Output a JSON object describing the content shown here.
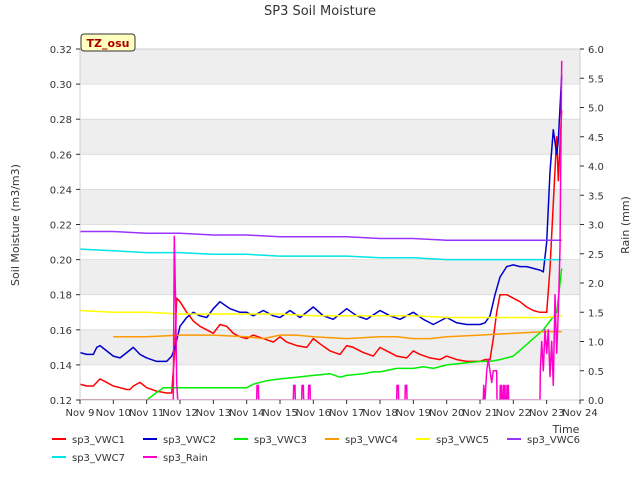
{
  "chart_data": {
    "type": "line",
    "title": "SP3 Soil Moisture",
    "xlabel": "Time",
    "ylabel": "Soil Moisture (m3/m3)",
    "y2label": "Rain (mm)",
    "annotation": "TZ_osu",
    "x_ticks": [
      "Nov 9",
      "Nov 10",
      "Nov 11",
      "Nov 12",
      "Nov 13",
      "Nov 14",
      "Nov 15",
      "Nov 16",
      "Nov 17",
      "Nov 18",
      "Nov 19",
      "Nov 20",
      "Nov 21",
      "Nov 22",
      "Nov 23",
      "Nov 24"
    ],
    "xlim": [
      9,
      24
    ],
    "ylim": [
      0.12,
      0.32
    ],
    "y_ticks": [
      "0.12",
      "0.14",
      "0.16",
      "0.18",
      "0.20",
      "0.22",
      "0.24",
      "0.26",
      "0.28",
      "0.30",
      "0.32"
    ],
    "y2lim": [
      0,
      6
    ],
    "y2_ticks": [
      "0.0",
      "0.5",
      "1.0",
      "1.5",
      "2.0",
      "2.5",
      "3.0",
      "3.5",
      "4.0",
      "4.5",
      "5.0",
      "5.5",
      "6.0"
    ],
    "grid": true,
    "legend_position": "bottom",
    "series": [
      {
        "name": "sp3_VWC1",
        "color": "#ff0000",
        "axis": "left",
        "x": [
          9.0,
          9.2,
          9.4,
          9.5,
          9.6,
          9.8,
          10.0,
          10.2,
          10.4,
          10.5,
          10.6,
          10.8,
          11.0,
          11.3,
          11.6,
          11.75,
          11.85,
          11.9,
          12.0,
          12.2,
          12.4,
          12.6,
          12.8,
          13.0,
          13.2,
          13.4,
          13.6,
          13.8,
          14.0,
          14.2,
          14.5,
          14.8,
          15.0,
          15.2,
          15.5,
          15.8,
          16.0,
          16.2,
          16.5,
          16.8,
          17.0,
          17.2,
          17.5,
          17.8,
          18.0,
          18.2,
          18.5,
          18.8,
          19.0,
          19.2,
          19.5,
          19.8,
          20.0,
          20.3,
          20.6,
          21.0,
          21.15,
          21.3,
          21.4,
          21.5,
          21.6,
          21.8,
          22.0,
          22.2,
          22.4,
          22.6,
          22.8,
          23.0,
          23.1,
          23.2,
          23.3,
          23.35,
          23.45
        ],
        "y": [
          0.129,
          0.128,
          0.128,
          0.13,
          0.132,
          0.13,
          0.128,
          0.127,
          0.126,
          0.126,
          0.128,
          0.13,
          0.127,
          0.125,
          0.124,
          0.124,
          0.15,
          0.178,
          0.176,
          0.17,
          0.165,
          0.162,
          0.16,
          0.158,
          0.163,
          0.162,
          0.158,
          0.156,
          0.155,
          0.157,
          0.155,
          0.153,
          0.156,
          0.153,
          0.151,
          0.15,
          0.155,
          0.152,
          0.148,
          0.146,
          0.151,
          0.15,
          0.147,
          0.145,
          0.15,
          0.148,
          0.145,
          0.144,
          0.148,
          0.146,
          0.144,
          0.143,
          0.145,
          0.143,
          0.142,
          0.142,
          0.143,
          0.143,
          0.155,
          0.17,
          0.18,
          0.18,
          0.178,
          0.176,
          0.173,
          0.171,
          0.17,
          0.17,
          0.195,
          0.232,
          0.27,
          0.245,
          0.285
        ]
      },
      {
        "name": "sp3_VWC2",
        "color": "#0000cc",
        "axis": "left",
        "x": [
          9.0,
          9.2,
          9.4,
          9.5,
          9.6,
          9.8,
          10.0,
          10.2,
          10.4,
          10.6,
          10.8,
          11.0,
          11.3,
          11.6,
          11.75,
          11.85,
          12.0,
          12.2,
          12.4,
          12.6,
          12.8,
          13.0,
          13.2,
          13.5,
          13.8,
          14.0,
          14.2,
          14.5,
          14.8,
          15.0,
          15.3,
          15.6,
          16.0,
          16.3,
          16.6,
          17.0,
          17.3,
          17.6,
          18.0,
          18.3,
          18.6,
          19.0,
          19.3,
          19.6,
          20.0,
          20.3,
          20.6,
          21.0,
          21.15,
          21.3,
          21.45,
          21.6,
          21.8,
          22.0,
          22.2,
          22.4,
          22.6,
          22.8,
          22.9,
          23.0,
          23.1,
          23.2,
          23.3,
          23.35,
          23.45
        ],
        "y": [
          0.147,
          0.146,
          0.146,
          0.15,
          0.151,
          0.148,
          0.145,
          0.144,
          0.147,
          0.15,
          0.146,
          0.144,
          0.142,
          0.142,
          0.145,
          0.15,
          0.162,
          0.167,
          0.17,
          0.168,
          0.167,
          0.172,
          0.176,
          0.172,
          0.17,
          0.17,
          0.168,
          0.171,
          0.168,
          0.167,
          0.171,
          0.167,
          0.173,
          0.168,
          0.166,
          0.172,
          0.168,
          0.166,
          0.171,
          0.168,
          0.166,
          0.17,
          0.166,
          0.163,
          0.167,
          0.164,
          0.163,
          0.163,
          0.164,
          0.168,
          0.18,
          0.19,
          0.196,
          0.197,
          0.196,
          0.196,
          0.195,
          0.194,
          0.193,
          0.21,
          0.25,
          0.274,
          0.26,
          0.268,
          0.305
        ]
      },
      {
        "name": "sp3_VWC3",
        "color": "#00ee00",
        "axis": "left",
        "x": [
          9.0,
          10.0,
          11.0,
          11.5,
          12.0,
          13.0,
          14.0,
          14.2,
          14.6,
          15.0,
          15.5,
          16.0,
          16.5,
          16.8,
          17.0,
          17.5,
          17.8,
          18.0,
          18.5,
          19.0,
          19.3,
          19.6,
          20.0,
          20.5,
          21.0,
          21.3,
          21.6,
          22.0,
          22.3,
          22.6,
          22.9,
          23.1,
          23.3,
          23.45
        ],
        "y": [
          0.12,
          0.12,
          0.12,
          0.127,
          0.127,
          0.127,
          0.127,
          0.129,
          0.131,
          0.132,
          0.133,
          0.134,
          0.135,
          0.133,
          0.134,
          0.135,
          0.136,
          0.136,
          0.138,
          0.138,
          0.139,
          0.138,
          0.14,
          0.141,
          0.142,
          0.142,
          0.143,
          0.145,
          0.15,
          0.155,
          0.16,
          0.165,
          0.17,
          0.195
        ]
      },
      {
        "name": "sp3_VWC4",
        "color": "#ff9900",
        "axis": "left",
        "x": [
          10.0,
          11.0,
          12.0,
          13.0,
          14.0,
          14.5,
          15.0,
          15.5,
          16.0,
          17.0,
          18.0,
          18.5,
          19.0,
          19.5,
          20.0,
          21.0,
          22.0,
          23.0,
          23.45
        ],
        "y": [
          0.156,
          0.156,
          0.157,
          0.157,
          0.156,
          0.155,
          0.157,
          0.157,
          0.156,
          0.155,
          0.156,
          0.156,
          0.155,
          0.155,
          0.156,
          0.157,
          0.158,
          0.159,
          0.159
        ]
      },
      {
        "name": "sp3_VWC5",
        "color": "#ffff00",
        "axis": "left",
        "x": [
          9.0,
          10.0,
          11.0,
          12.0,
          13.0,
          14.0,
          15.0,
          16.0,
          17.0,
          18.0,
          19.0,
          20.0,
          21.0,
          22.0,
          23.0,
          23.45
        ],
        "y": [
          0.171,
          0.17,
          0.17,
          0.169,
          0.169,
          0.169,
          0.169,
          0.168,
          0.168,
          0.168,
          0.168,
          0.167,
          0.167,
          0.167,
          0.167,
          0.168
        ]
      },
      {
        "name": "sp3_VWC6",
        "color": "#9933ff",
        "axis": "left",
        "x": [
          9.0,
          10.0,
          11.0,
          12.0,
          13.0,
          14.0,
          15.0,
          16.0,
          17.0,
          18.0,
          19.0,
          20.0,
          21.0,
          22.0,
          23.0,
          23.45
        ],
        "y": [
          0.216,
          0.216,
          0.215,
          0.215,
          0.214,
          0.214,
          0.213,
          0.213,
          0.213,
          0.212,
          0.212,
          0.211,
          0.211,
          0.211,
          0.211,
          0.211
        ]
      },
      {
        "name": "sp3_VWC7",
        "color": "#00e5e5",
        "axis": "left",
        "x": [
          9.0,
          10.0,
          11.0,
          12.0,
          13.0,
          14.0,
          15.0,
          16.0,
          17.0,
          18.0,
          19.0,
          20.0,
          21.0,
          22.0,
          23.0,
          23.45
        ],
        "y": [
          0.206,
          0.205,
          0.204,
          0.204,
          0.203,
          0.203,
          0.202,
          0.202,
          0.202,
          0.201,
          0.201,
          0.2,
          0.2,
          0.2,
          0.2,
          0.2
        ]
      },
      {
        "name": "sp3_Rain",
        "color": "#ff00cc",
        "axis": "right",
        "x": [
          9.0,
          11.8,
          11.83,
          11.87,
          11.9,
          11.93,
          12.0,
          14.3,
          14.31,
          14.35,
          14.36,
          15.4,
          15.41,
          15.45,
          15.46,
          15.65,
          15.66,
          15.7,
          15.71,
          15.85,
          15.86,
          15.9,
          15.91,
          18.5,
          18.51,
          18.55,
          18.56,
          18.75,
          18.76,
          18.8,
          18.81,
          21.1,
          21.11,
          21.15,
          21.2,
          21.25,
          21.3,
          21.35,
          21.4,
          21.45,
          21.5,
          21.51,
          21.6,
          21.61,
          21.63,
          21.65,
          21.66,
          21.7,
          21.71,
          21.73,
          21.75,
          21.76,
          21.8,
          21.81,
          21.83,
          21.85,
          21.86,
          22.8,
          22.81,
          22.85,
          22.9,
          22.95,
          23.0,
          23.05,
          23.1,
          23.15,
          23.2,
          23.25,
          23.3,
          23.35,
          23.4,
          23.45
        ],
        "y": [
          0,
          0,
          2.8,
          1.6,
          0.3,
          0,
          0,
          0,
          0.25,
          0.25,
          0,
          0,
          0.25,
          0.25,
          0,
          0,
          0.25,
          0.25,
          0,
          0,
          0.25,
          0.25,
          0,
          0,
          0.25,
          0.25,
          0,
          0,
          0.25,
          0.25,
          0,
          0,
          0.25,
          0,
          0.5,
          0.7,
          0.5,
          0.3,
          0.5,
          0.5,
          0.5,
          0,
          0,
          0.25,
          0,
          0.25,
          0,
          0,
          0.25,
          0,
          0.25,
          0,
          0,
          0.25,
          0,
          0.25,
          0,
          0,
          0.5,
          1.0,
          0.5,
          1.2,
          0.8,
          1.2,
          0.4,
          1.0,
          0.25,
          1.8,
          0.8,
          1.5,
          2.6,
          5.8
        ]
      }
    ]
  }
}
